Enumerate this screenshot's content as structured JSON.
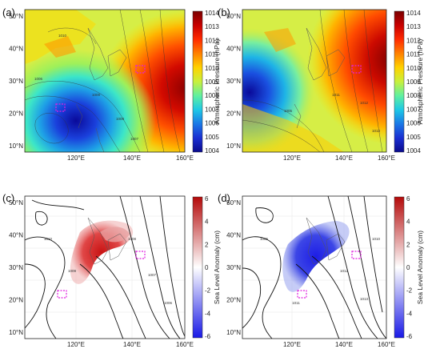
{
  "figure": {
    "panels": [
      {
        "id": "a",
        "label": "(a)",
        "kind": "pressure"
      },
      {
        "id": "b",
        "label": "(b)",
        "kind": "pressure"
      },
      {
        "id": "c",
        "label": "(c)",
        "kind": "sla"
      },
      {
        "id": "d",
        "label": "(d)",
        "kind": "sla"
      }
    ],
    "axes": {
      "lat_ticks": [
        "50°N",
        "40°N",
        "30°N",
        "20°N",
        "10°N"
      ],
      "lon_ticks": [
        "120°E",
        "140°E",
        "160°E"
      ]
    },
    "pressure_colorbar": {
      "title": "Atmospheric Pressure (hPa)",
      "ticks": [
        "1014",
        "1013",
        "1012",
        "1011",
        "1010",
        "1009",
        "1008",
        "1007",
        "1006",
        "1005",
        "1004"
      ],
      "colors": [
        "#7a0000",
        "#c80000",
        "#ff2a00",
        "#ff8000",
        "#ffd200",
        "#c8f03c",
        "#5ff0a0",
        "#1ec8e6",
        "#1a78e6",
        "#1a2ed2",
        "#0a0a8c"
      ]
    },
    "sla_colorbar": {
      "title": "Sea Level Anomaly (cm)",
      "ticks": [
        "6",
        "4",
        "2",
        "0",
        "-2",
        "-4",
        "-6"
      ],
      "colors": [
        "#b40a0a",
        "#ffffff",
        "#1919e6"
      ]
    },
    "contour_labels": [
      "1010",
      "1009",
      "1008",
      "1007",
      "1006",
      "1005",
      "1011",
      "1012",
      "1013"
    ]
  },
  "chart_data": [
    {
      "type": "heatmap",
      "panel": "a",
      "colorbar_title": "Atmospheric Pressure (hPa)",
      "value_range": [
        1004,
        1014
      ],
      "lat_range": [
        "10°N",
        "50°N"
      ],
      "lon_range": [
        "~105°E",
        "160°E"
      ]
    },
    {
      "type": "heatmap",
      "panel": "b",
      "colorbar_title": "Atmospheric Pressure (hPa)",
      "value_range": [
        1004,
        1014
      ],
      "lat_range": [
        "10°N",
        "50°N"
      ],
      "lon_range": [
        "~105°E",
        "160°E"
      ]
    },
    {
      "type": "heatmap",
      "panel": "c",
      "colorbar_title": "Sea Level Anomaly (cm)",
      "value_range": [
        -6,
        6
      ],
      "note": "positive (red) anomaly over East China Sea / Japan"
    },
    {
      "type": "heatmap",
      "panel": "d",
      "colorbar_title": "Sea Level Anomaly (cm)",
      "value_range": [
        -6,
        6
      ],
      "note": "negative (blue) anomaly over East China Sea / Japan"
    }
  ]
}
